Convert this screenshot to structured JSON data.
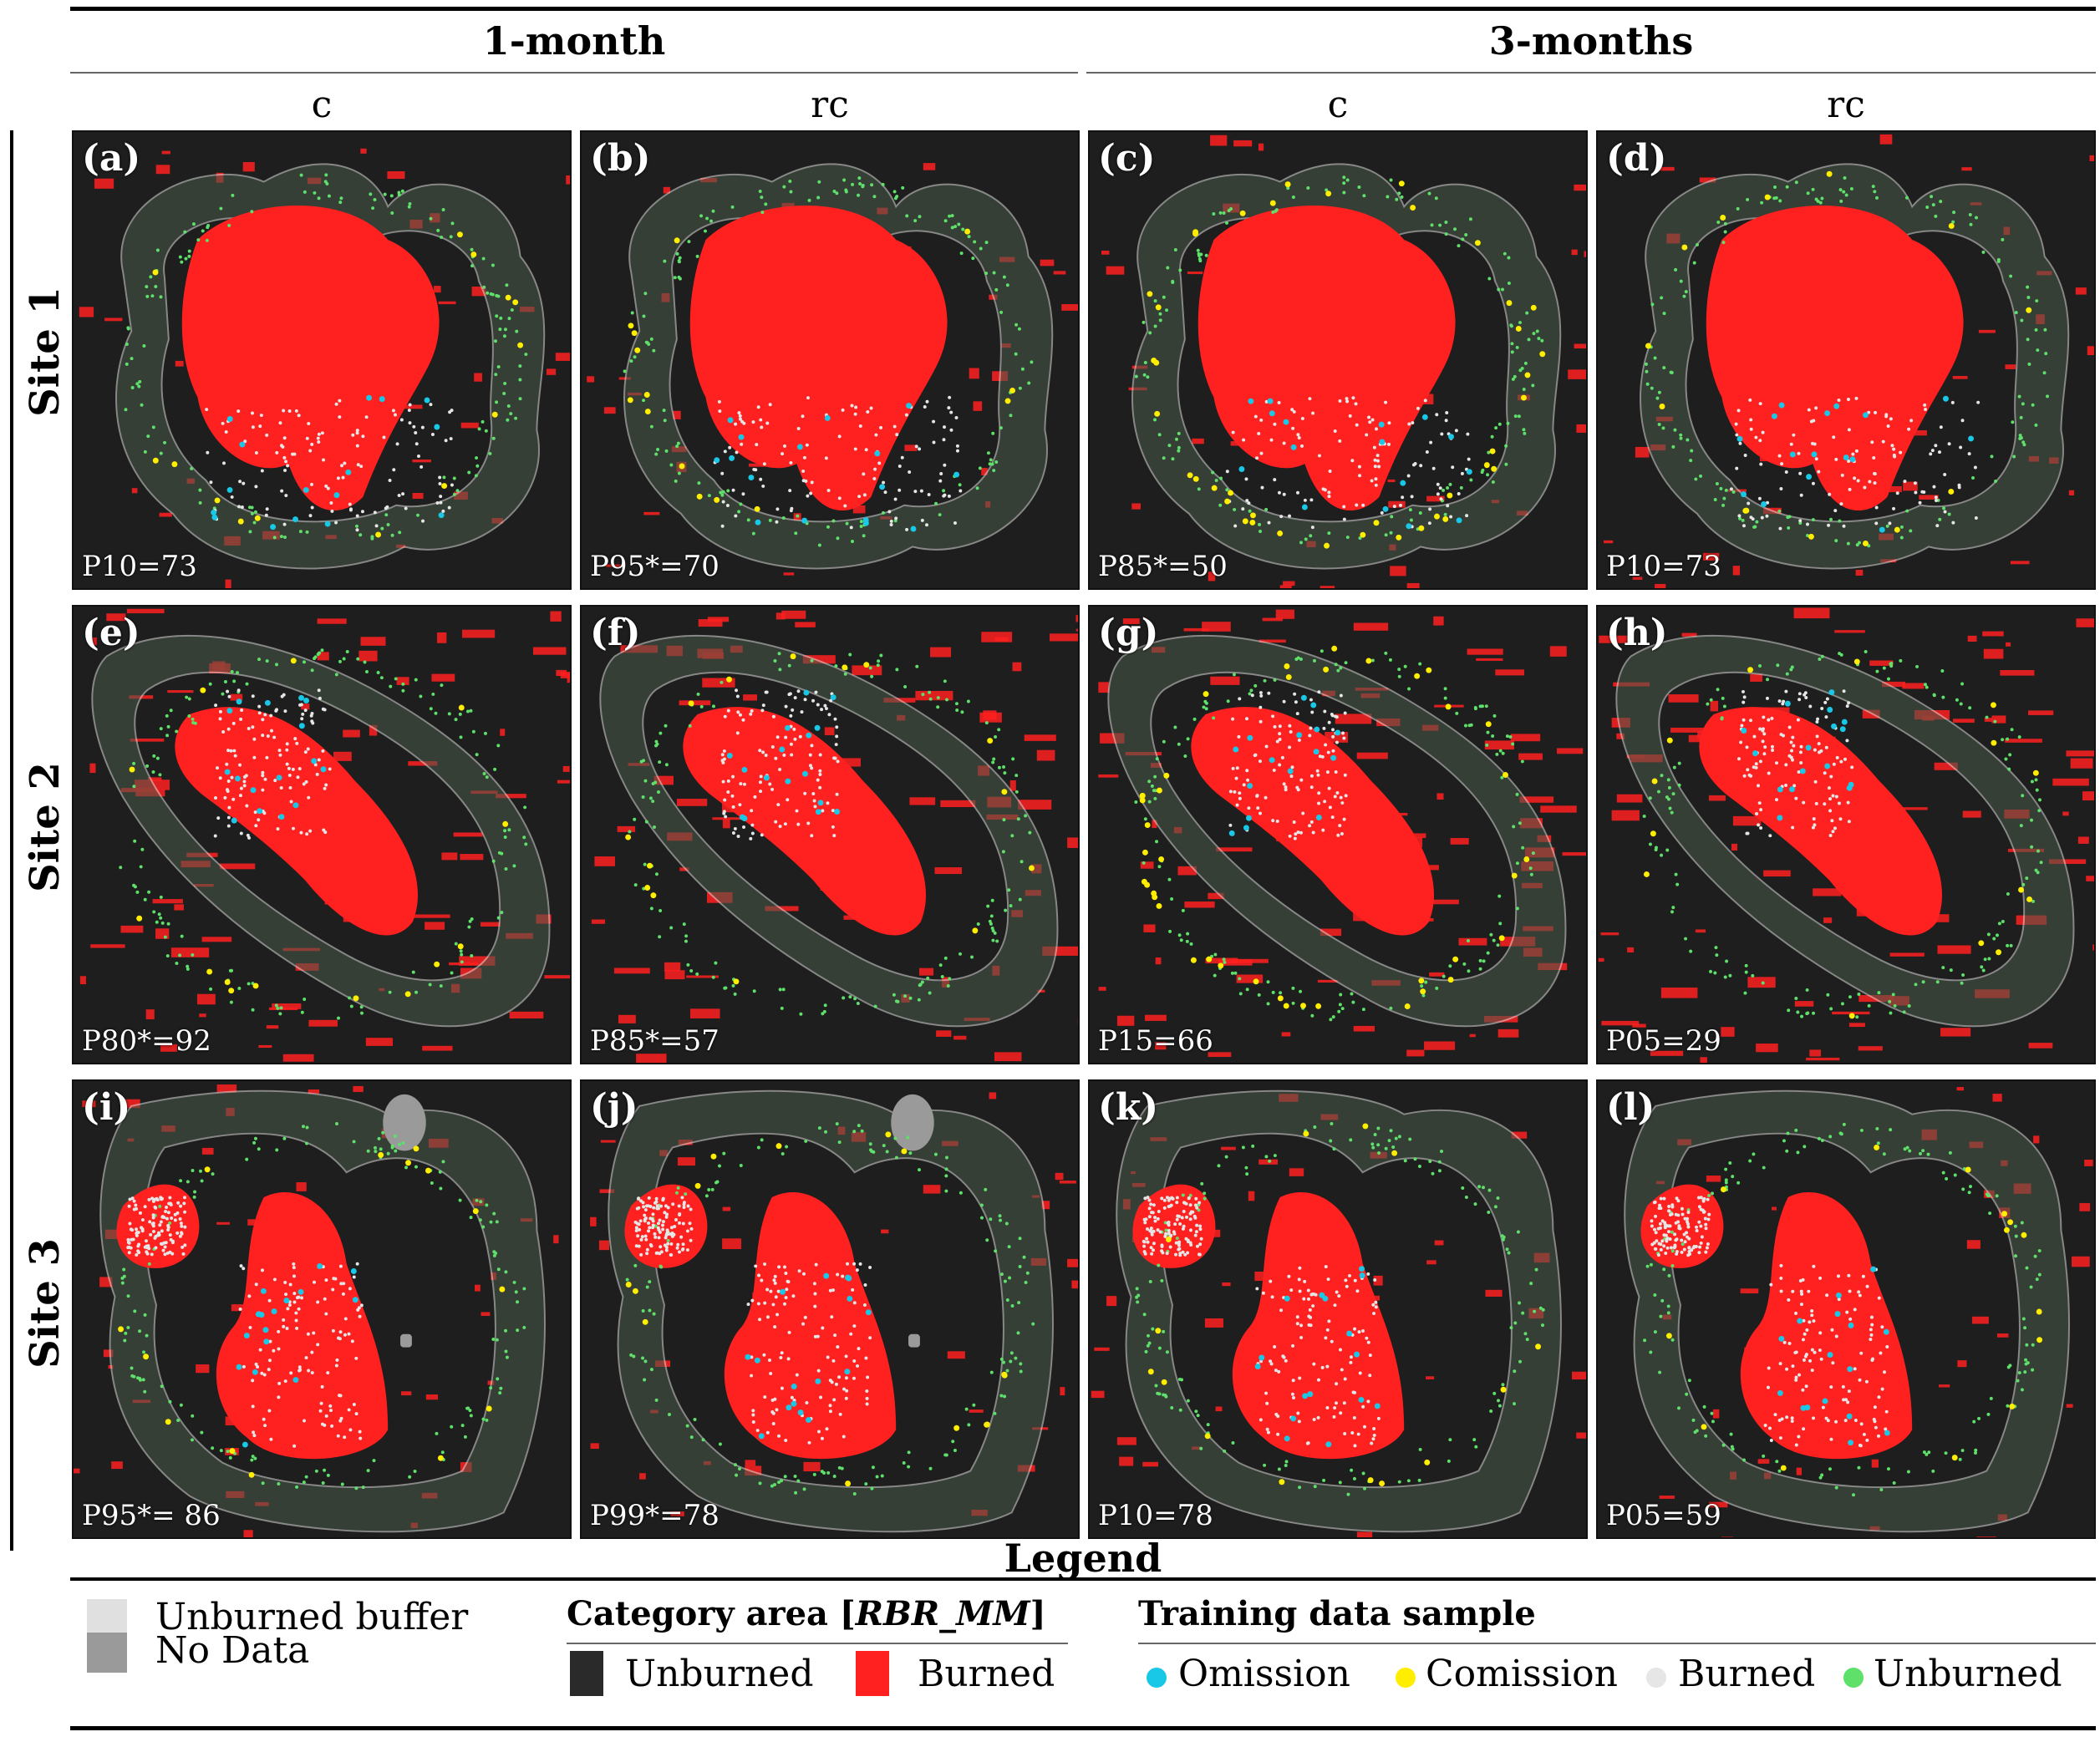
{
  "columns": {
    "groups": [
      "1-month",
      "3-months"
    ],
    "labels": [
      "c",
      "rc",
      "c",
      "rc"
    ]
  },
  "rows": [
    "Site 1",
    "Site 2",
    "Site 3"
  ],
  "panels": [
    {
      "label": "(a)",
      "value": "P10=73"
    },
    {
      "label": "(b)",
      "value": "P95*=70"
    },
    {
      "label": "(c)",
      "value": "P85*=50"
    },
    {
      "label": "(d)",
      "value": "P10=73"
    },
    {
      "label": "(e)",
      "value": "P80*=92"
    },
    {
      "label": "(f)",
      "value": "P85*=57"
    },
    {
      "label": "(g)",
      "value": "P15=66"
    },
    {
      "label": "(h)",
      "value": "P05=29"
    },
    {
      "label": "(i)",
      "value": "P95*= 86"
    },
    {
      "label": "(j)",
      "value": "P99*=78"
    },
    {
      "label": "(k)",
      "value": "P10=78"
    },
    {
      "label": "(l)",
      "value": "P05=59"
    }
  ],
  "legend": {
    "title": "Legend",
    "unburned_buffer": "Unburned buffer",
    "no_data": "No Data",
    "category_title_prefix": "Category area [",
    "category_title_italic": "RBR_MM",
    "category_title_suffix": "]",
    "unburned": "Unburned",
    "burned": "Burned",
    "training_title": "Training data sample",
    "omission": "Omission",
    "comission": "Comission",
    "burned_sample": "Burned",
    "unburned_sample": "Unburned"
  },
  "colors": {
    "background_dark": "#1e1e1e",
    "burned_red": "#ff2020",
    "buffer_light": "#e0e0e0",
    "no_data_gray": "#9a9a9a",
    "unburned_dark": "#2a2a2a",
    "omission_cyan": "#19c8e6",
    "comission_yellow": "#ffee00",
    "burned_sample_white": "#e6e6e6",
    "unburned_sample_green": "#5ee06a"
  }
}
